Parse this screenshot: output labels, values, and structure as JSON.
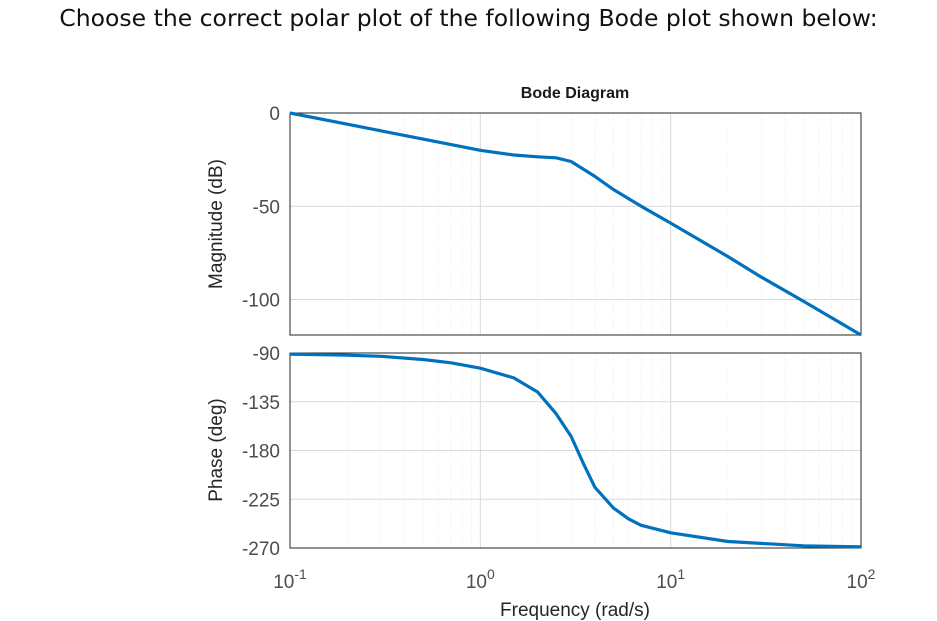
{
  "question": "Choose the correct polar plot of the following Bode plot shown below:",
  "chart_data": [
    {
      "type": "line",
      "title": "Bode Diagram",
      "ylabel": "Magnitude (dB)",
      "xlabel": "Frequency (rad/s)",
      "xscale": "log",
      "xlim": [
        0.1,
        100
      ],
      "ylim": [
        -119,
        0
      ],
      "yticks": [
        0,
        -50,
        -100
      ],
      "grid": true,
      "color": "#0072BD",
      "series": [
        {
          "x": [
            0.1,
            0.2,
            0.5,
            1,
            1.5,
            2,
            2.5,
            3,
            4,
            5,
            7,
            10,
            20,
            30,
            50,
            100
          ],
          "y": [
            0,
            -6,
            -14,
            -20,
            -22.5,
            -23.5,
            -24,
            -26,
            -34,
            -41,
            -50,
            -59,
            -77,
            -88,
            -101,
            -119
          ]
        }
      ]
    },
    {
      "type": "line",
      "ylabel": "Phase (deg)",
      "xlabel": "Frequency (rad/s)",
      "xscale": "log",
      "xlim": [
        0.1,
        100
      ],
      "ylim": [
        -270,
        -90
      ],
      "yticks": [
        -90,
        -135,
        -180,
        -225,
        -270
      ],
      "xticks": [
        "10^-1",
        "10^0",
        "10^1",
        "10^2"
      ],
      "grid": true,
      "color": "#0072BD",
      "series": [
        {
          "x": [
            0.1,
            0.2,
            0.3,
            0.5,
            0.7,
            1,
            1.5,
            2,
            2.5,
            3,
            3.5,
            4,
            5,
            6,
            7,
            10,
            20,
            50,
            100
          ],
          "y": [
            -91,
            -92,
            -93,
            -96,
            -99,
            -104,
            -113,
            -126,
            -146,
            -167,
            -193,
            -214,
            -233,
            -243,
            -249,
            -256,
            -264,
            -268,
            -269
          ]
        }
      ]
    }
  ]
}
